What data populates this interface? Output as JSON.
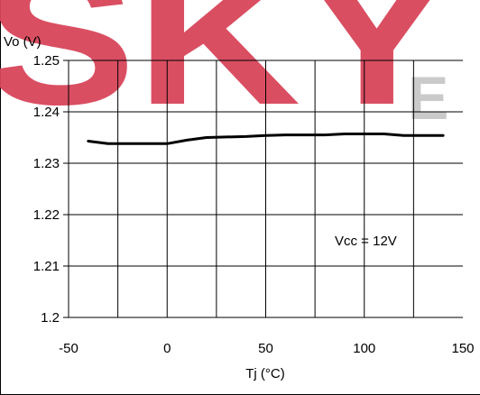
{
  "colors": {
    "watermark": "#d9455a",
    "watermark_secondary": "#c8c8c8",
    "line": "#000000",
    "grid": "#000000",
    "background": "#ffffff"
  },
  "watermark": {
    "text": "SKY",
    "trailing_text": "E"
  },
  "chart_data": {
    "type": "line",
    "title": "",
    "xlabel": "Tj (°C)",
    "ylabel": "Vo (V)",
    "xlim": [
      -50,
      150
    ],
    "ylim": [
      1.2,
      1.25
    ],
    "xticks": [
      -50,
      0,
      50,
      100,
      150
    ],
    "xtick_labels": [
      "-50",
      "0",
      "50",
      "100",
      "150"
    ],
    "yticks": [
      1.2,
      1.21,
      1.22,
      1.23,
      1.24,
      1.25
    ],
    "ytick_labels": [
      "1.2",
      "1.21",
      "1.22",
      "1.23",
      "1.24",
      "1.25"
    ],
    "x_grid_step": 25,
    "grid": true,
    "annotation": "Vcc = 12V",
    "series": [
      {
        "x": [
          -40,
          -30,
          -20,
          -10,
          0,
          10,
          20,
          30,
          40,
          50,
          60,
          70,
          80,
          90,
          100,
          110,
          120,
          130,
          140
        ],
        "values": [
          1.2343,
          1.2338,
          1.2338,
          1.2338,
          1.2338,
          1.2345,
          1.235,
          1.2351,
          1.2352,
          1.2354,
          1.2355,
          1.2355,
          1.2355,
          1.2357,
          1.2357,
          1.2357,
          1.2354,
          1.2354,
          1.2354
        ]
      }
    ]
  }
}
